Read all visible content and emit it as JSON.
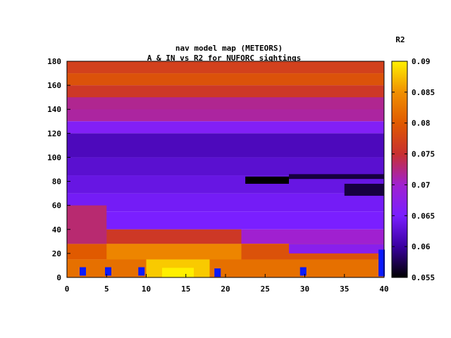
{
  "chart_data": {
    "type": "heatmap",
    "title": "nav model map (METEORS)",
    "subtitle": "A & IN vs R2 for NUFORC sightings",
    "xlabel": "",
    "ylabel": "",
    "xlim": [
      0,
      40
    ],
    "ylim": [
      0,
      180
    ],
    "x_ticks": [
      "0",
      "5",
      "10",
      "15",
      "20",
      "25",
      "30",
      "35",
      "40"
    ],
    "y_ticks": [
      "0",
      "20",
      "40",
      "60",
      "80",
      "100",
      "120",
      "140",
      "160",
      "180"
    ],
    "colorbar": {
      "label": "R2",
      "range": [
        0.055,
        0.09
      ],
      "ticks": [
        "0.055",
        "0.06",
        "0.065",
        "0.07",
        "0.075",
        "0.08",
        "0.085",
        "0.09"
      ],
      "palette": [
        "#000000",
        "#3a00a0",
        "#7a1fff",
        "#a020d0",
        "#c83030",
        "#e05a00",
        "#f09000",
        "#fff000"
      ]
    },
    "bands": [
      {
        "y": [
          170,
          180
        ],
        "value": 0.077
      },
      {
        "y": [
          160,
          170
        ],
        "value": 0.079
      },
      {
        "y": [
          145,
          160
        ],
        "value": 0.076
      },
      {
        "y": [
          130,
          145
        ],
        "value": 0.0715
      },
      {
        "y": [
          120,
          130
        ],
        "value": 0.066
      },
      {
        "y": [
          100,
          120
        ],
        "value": 0.0615
      },
      {
        "y": [
          85,
          100
        ],
        "value": 0.0625
      },
      {
        "y": [
          70,
          85
        ],
        "value": 0.0635
      },
      {
        "y": [
          55,
          70
        ],
        "value": 0.0645
      },
      {
        "y": [
          40,
          55
        ],
        "value": 0.065
      },
      {
        "y": [
          28,
          40
        ],
        "value": 0.07
      },
      {
        "y": [
          15,
          28
        ],
        "value": 0.08
      },
      {
        "y": [
          0,
          15
        ],
        "value": 0.082
      }
    ],
    "regions": [
      {
        "x": [
          0,
          5
        ],
        "y": [
          28,
          60
        ],
        "value": 0.073
      },
      {
        "x": [
          5,
          22
        ],
        "y": [
          28,
          40
        ],
        "value": 0.076
      },
      {
        "x": [
          5,
          22
        ],
        "y": [
          15,
          28
        ],
        "value": 0.084
      },
      {
        "x": [
          10,
          18
        ],
        "y": [
          0,
          15
        ],
        "value": 0.088
      },
      {
        "x": [
          12,
          16
        ],
        "y": [
          0,
          8
        ],
        "value": 0.09
      },
      {
        "x": [
          22,
          40
        ],
        "y": [
          15,
          28
        ],
        "value": 0.079
      },
      {
        "x": [
          28,
          40
        ],
        "y": [
          20,
          28
        ],
        "value": 0.067
      },
      {
        "x": [
          22.5,
          28
        ],
        "y": [
          78,
          84
        ],
        "value": 0.055
      },
      {
        "x": [
          28,
          40
        ],
        "y": [
          82,
          86
        ],
        "value": 0.057
      },
      {
        "x": [
          35,
          40
        ],
        "y": [
          68,
          78
        ],
        "value": 0.057
      },
      {
        "x": [
          0,
          40
        ],
        "y": [
          140,
          150
        ],
        "value": 0.072
      }
    ],
    "markers": [
      {
        "x": 2,
        "y": 5
      },
      {
        "x": 5.2,
        "y": 5
      },
      {
        "x": 9.4,
        "y": 5
      },
      {
        "x": 19,
        "y": 4
      },
      {
        "x": 29.8,
        "y": 5
      },
      {
        "x": 39.7,
        "y": 12
      }
    ]
  }
}
